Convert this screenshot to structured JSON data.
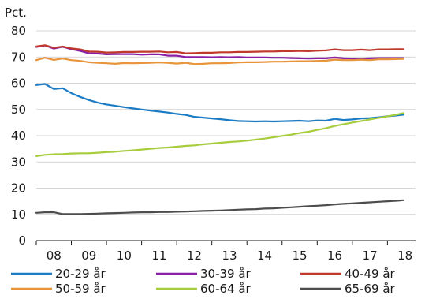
{
  "chart_data": {
    "type": "line",
    "title": "",
    "y_unit_label": "Pct.",
    "ylim": [
      0,
      80
    ],
    "y_ticks": [
      0,
      10,
      20,
      30,
      40,
      50,
      60,
      70,
      80
    ],
    "xlim": [
      2007.5,
      2018.3
    ],
    "x_ticks": [
      {
        "value": 2008,
        "label": "08"
      },
      {
        "value": 2009,
        "label": "09"
      },
      {
        "value": 2010,
        "label": "10"
      },
      {
        "value": 2011,
        "label": "11"
      },
      {
        "value": 2012,
        "label": "12"
      },
      {
        "value": 2013,
        "label": "13"
      },
      {
        "value": 2014,
        "label": "14"
      },
      {
        "value": 2015,
        "label": "15"
      },
      {
        "value": 2016,
        "label": "16"
      },
      {
        "value": 2017,
        "label": "17"
      },
      {
        "value": 2018,
        "label": "18"
      }
    ],
    "grid": "horizontal",
    "legend_position": "bottom",
    "series": [
      {
        "name": "20-29 år",
        "color": "#1b7bc4",
        "points": [
          [
            2007.5,
            59.3
          ],
          [
            2007.75,
            59.7
          ],
          [
            2008.0,
            57.8
          ],
          [
            2008.25,
            58.1
          ],
          [
            2008.5,
            56.2
          ],
          [
            2008.75,
            54.8
          ],
          [
            2009.0,
            53.6
          ],
          [
            2009.25,
            52.6
          ],
          [
            2009.5,
            51.9
          ],
          [
            2009.75,
            51.4
          ],
          [
            2010.0,
            50.9
          ],
          [
            2010.25,
            50.4
          ],
          [
            2010.5,
            50.0
          ],
          [
            2010.75,
            49.6
          ],
          [
            2011.0,
            49.2
          ],
          [
            2011.25,
            48.8
          ],
          [
            2011.5,
            48.3
          ],
          [
            2011.75,
            47.9
          ],
          [
            2012.0,
            47.2
          ],
          [
            2012.25,
            46.9
          ],
          [
            2012.5,
            46.6
          ],
          [
            2012.75,
            46.3
          ],
          [
            2013.0,
            45.9
          ],
          [
            2013.25,
            45.6
          ],
          [
            2013.5,
            45.5
          ],
          [
            2013.75,
            45.4
          ],
          [
            2014.0,
            45.5
          ],
          [
            2014.25,
            45.4
          ],
          [
            2014.5,
            45.5
          ],
          [
            2014.75,
            45.6
          ],
          [
            2015.0,
            45.7
          ],
          [
            2015.25,
            45.5
          ],
          [
            2015.5,
            45.8
          ],
          [
            2015.75,
            45.7
          ],
          [
            2016.0,
            46.4
          ],
          [
            2016.25,
            46.0
          ],
          [
            2016.5,
            46.2
          ],
          [
            2016.75,
            46.6
          ],
          [
            2017.0,
            46.7
          ],
          [
            2017.25,
            47.0
          ],
          [
            2017.5,
            47.4
          ],
          [
            2017.75,
            47.7
          ],
          [
            2017.95,
            48.0
          ]
        ]
      },
      {
        "name": "30-39 år",
        "color": "#8a1ea6",
        "points": [
          [
            2007.5,
            73.8
          ],
          [
            2007.75,
            74.4
          ],
          [
            2008.0,
            73.2
          ],
          [
            2008.25,
            73.9
          ],
          [
            2008.5,
            73.0
          ],
          [
            2008.75,
            72.3
          ],
          [
            2009.0,
            71.4
          ],
          [
            2009.25,
            71.3
          ],
          [
            2009.5,
            71.0
          ],
          [
            2009.75,
            71.1
          ],
          [
            2010.0,
            71.1
          ],
          [
            2010.25,
            71.1
          ],
          [
            2010.5,
            70.9
          ],
          [
            2010.75,
            71.0
          ],
          [
            2011.0,
            71.0
          ],
          [
            2011.25,
            70.5
          ],
          [
            2011.5,
            70.5
          ],
          [
            2011.75,
            70.0
          ],
          [
            2012.0,
            70.0
          ],
          [
            2012.25,
            70.0
          ],
          [
            2012.5,
            69.9
          ],
          [
            2012.75,
            70.0
          ],
          [
            2013.0,
            69.9
          ],
          [
            2013.25,
            70.0
          ],
          [
            2013.5,
            69.8
          ],
          [
            2013.75,
            69.8
          ],
          [
            2014.0,
            69.8
          ],
          [
            2014.25,
            69.7
          ],
          [
            2014.5,
            69.7
          ],
          [
            2014.75,
            69.6
          ],
          [
            2015.0,
            69.5
          ],
          [
            2015.25,
            69.4
          ],
          [
            2015.5,
            69.5
          ],
          [
            2015.75,
            69.5
          ],
          [
            2016.0,
            69.8
          ],
          [
            2016.25,
            69.5
          ],
          [
            2016.5,
            69.4
          ],
          [
            2016.75,
            69.4
          ],
          [
            2017.0,
            69.5
          ],
          [
            2017.25,
            69.6
          ],
          [
            2017.5,
            69.6
          ],
          [
            2017.75,
            69.6
          ],
          [
            2017.95,
            69.6
          ]
        ]
      },
      {
        "name": "40-49 år",
        "color": "#c0392b",
        "points": [
          [
            2007.5,
            74.0
          ],
          [
            2007.75,
            74.5
          ],
          [
            2008.0,
            73.5
          ],
          [
            2008.25,
            74.0
          ],
          [
            2008.5,
            73.3
          ],
          [
            2008.75,
            72.9
          ],
          [
            2009.0,
            72.1
          ],
          [
            2009.25,
            72.0
          ],
          [
            2009.5,
            71.7
          ],
          [
            2009.75,
            71.8
          ],
          [
            2010.0,
            71.9
          ],
          [
            2010.25,
            71.9
          ],
          [
            2010.5,
            72.0
          ],
          [
            2010.75,
            72.0
          ],
          [
            2011.0,
            72.1
          ],
          [
            2011.25,
            71.8
          ],
          [
            2011.5,
            71.9
          ],
          [
            2011.75,
            71.4
          ],
          [
            2012.0,
            71.5
          ],
          [
            2012.25,
            71.6
          ],
          [
            2012.5,
            71.6
          ],
          [
            2012.75,
            71.8
          ],
          [
            2013.0,
            71.8
          ],
          [
            2013.25,
            71.9
          ],
          [
            2013.5,
            71.9
          ],
          [
            2013.75,
            72.0
          ],
          [
            2014.0,
            72.1
          ],
          [
            2014.25,
            72.1
          ],
          [
            2014.5,
            72.2
          ],
          [
            2014.75,
            72.2
          ],
          [
            2015.0,
            72.3
          ],
          [
            2015.25,
            72.2
          ],
          [
            2015.5,
            72.4
          ],
          [
            2015.75,
            72.5
          ],
          [
            2016.0,
            72.9
          ],
          [
            2016.25,
            72.6
          ],
          [
            2016.5,
            72.6
          ],
          [
            2016.75,
            72.8
          ],
          [
            2017.0,
            72.6
          ],
          [
            2017.25,
            72.9
          ],
          [
            2017.5,
            72.9
          ],
          [
            2017.75,
            73.0
          ],
          [
            2017.95,
            73.0
          ]
        ]
      },
      {
        "name": "50-59 år",
        "color": "#e8943a",
        "points": [
          [
            2007.5,
            68.8
          ],
          [
            2007.75,
            69.7
          ],
          [
            2008.0,
            68.9
          ],
          [
            2008.25,
            69.4
          ],
          [
            2008.5,
            68.8
          ],
          [
            2008.75,
            68.5
          ],
          [
            2009.0,
            68.0
          ],
          [
            2009.25,
            67.8
          ],
          [
            2009.5,
            67.6
          ],
          [
            2009.75,
            67.4
          ],
          [
            2010.0,
            67.7
          ],
          [
            2010.25,
            67.6
          ],
          [
            2010.5,
            67.7
          ],
          [
            2010.75,
            67.8
          ],
          [
            2011.0,
            67.9
          ],
          [
            2011.25,
            67.8
          ],
          [
            2011.5,
            67.5
          ],
          [
            2011.75,
            67.8
          ],
          [
            2012.0,
            67.3
          ],
          [
            2012.25,
            67.4
          ],
          [
            2012.5,
            67.6
          ],
          [
            2012.75,
            67.6
          ],
          [
            2013.0,
            67.7
          ],
          [
            2013.25,
            67.9
          ],
          [
            2013.5,
            68.0
          ],
          [
            2013.75,
            68.0
          ],
          [
            2014.0,
            68.1
          ],
          [
            2014.25,
            68.2
          ],
          [
            2014.5,
            68.2
          ],
          [
            2014.75,
            68.3
          ],
          [
            2015.0,
            68.4
          ],
          [
            2015.25,
            68.4
          ],
          [
            2015.5,
            68.5
          ],
          [
            2015.75,
            68.6
          ],
          [
            2016.0,
            69.0
          ],
          [
            2016.25,
            68.8
          ],
          [
            2016.5,
            68.8
          ],
          [
            2016.75,
            69.0
          ],
          [
            2017.0,
            68.8
          ],
          [
            2017.25,
            69.1
          ],
          [
            2017.5,
            69.1
          ],
          [
            2017.75,
            69.2
          ],
          [
            2017.95,
            69.3
          ]
        ]
      },
      {
        "name": "60-64 år",
        "color": "#a8cd3c",
        "points": [
          [
            2007.5,
            32.2
          ],
          [
            2007.75,
            32.7
          ],
          [
            2008.0,
            32.9
          ],
          [
            2008.25,
            33.0
          ],
          [
            2008.5,
            33.2
          ],
          [
            2008.75,
            33.3
          ],
          [
            2009.0,
            33.3
          ],
          [
            2009.25,
            33.5
          ],
          [
            2009.5,
            33.7
          ],
          [
            2009.75,
            33.9
          ],
          [
            2010.0,
            34.2
          ],
          [
            2010.25,
            34.4
          ],
          [
            2010.5,
            34.7
          ],
          [
            2010.75,
            35.0
          ],
          [
            2011.0,
            35.3
          ],
          [
            2011.25,
            35.5
          ],
          [
            2011.5,
            35.8
          ],
          [
            2011.75,
            36.1
          ],
          [
            2012.0,
            36.3
          ],
          [
            2012.25,
            36.7
          ],
          [
            2012.5,
            37.0
          ],
          [
            2012.75,
            37.3
          ],
          [
            2013.0,
            37.6
          ],
          [
            2013.25,
            37.8
          ],
          [
            2013.5,
            38.1
          ],
          [
            2013.75,
            38.5
          ],
          [
            2014.0,
            38.9
          ],
          [
            2014.25,
            39.4
          ],
          [
            2014.5,
            39.9
          ],
          [
            2014.75,
            40.4
          ],
          [
            2015.0,
            41.0
          ],
          [
            2015.25,
            41.5
          ],
          [
            2015.5,
            42.2
          ],
          [
            2015.75,
            42.9
          ],
          [
            2016.0,
            43.7
          ],
          [
            2016.25,
            44.4
          ],
          [
            2016.5,
            45.0
          ],
          [
            2016.75,
            45.6
          ],
          [
            2017.0,
            46.2
          ],
          [
            2017.25,
            46.8
          ],
          [
            2017.5,
            47.4
          ],
          [
            2017.75,
            48.0
          ],
          [
            2017.95,
            48.6
          ]
        ]
      },
      {
        "name": "65-69 år",
        "color": "#4d4d4d",
        "points": [
          [
            2007.5,
            10.6
          ],
          [
            2007.75,
            10.8
          ],
          [
            2008.0,
            10.8
          ],
          [
            2008.25,
            10.1
          ],
          [
            2008.5,
            10.1
          ],
          [
            2008.75,
            10.1
          ],
          [
            2009.0,
            10.2
          ],
          [
            2009.25,
            10.3
          ],
          [
            2009.5,
            10.4
          ],
          [
            2009.75,
            10.5
          ],
          [
            2010.0,
            10.6
          ],
          [
            2010.25,
            10.7
          ],
          [
            2010.5,
            10.8
          ],
          [
            2010.75,
            10.8
          ],
          [
            2011.0,
            10.9
          ],
          [
            2011.25,
            10.9
          ],
          [
            2011.5,
            11.0
          ],
          [
            2011.75,
            11.1
          ],
          [
            2012.0,
            11.2
          ],
          [
            2012.25,
            11.3
          ],
          [
            2012.5,
            11.4
          ],
          [
            2012.75,
            11.5
          ],
          [
            2013.0,
            11.6
          ],
          [
            2013.25,
            11.8
          ],
          [
            2013.5,
            11.9
          ],
          [
            2013.75,
            12.0
          ],
          [
            2014.0,
            12.2
          ],
          [
            2014.25,
            12.3
          ],
          [
            2014.5,
            12.5
          ],
          [
            2014.75,
            12.7
          ],
          [
            2015.0,
            12.9
          ],
          [
            2015.25,
            13.1
          ],
          [
            2015.5,
            13.3
          ],
          [
            2015.75,
            13.5
          ],
          [
            2016.0,
            13.8
          ],
          [
            2016.25,
            14.0
          ],
          [
            2016.5,
            14.2
          ],
          [
            2016.75,
            14.4
          ],
          [
            2017.0,
            14.6
          ],
          [
            2017.25,
            14.8
          ],
          [
            2017.5,
            15.0
          ],
          [
            2017.75,
            15.2
          ],
          [
            2017.95,
            15.4
          ]
        ]
      }
    ]
  }
}
